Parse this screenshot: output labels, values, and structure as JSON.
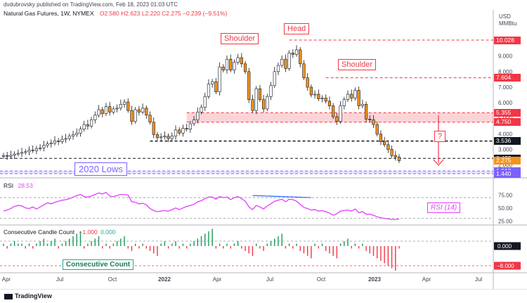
{
  "header": {
    "publisher": "dvdubrovsky published on TradingView.com, Feb 18, 2023 01:03 UTC",
    "symbol": "Natural Gas Futures, 1W, NYMEX",
    "ohlc": "O2.580  H2.623  L2.220  C2.275  −0.239 (−9.51%)",
    "currency": "USD",
    "unit": "MMBtu"
  },
  "annotations": {
    "shoulder_left": "Shoulder",
    "head": "Head",
    "shoulder_right": "Shoulder",
    "lows_2020": "2020 Lows",
    "question": "?",
    "rsi_label": "RSI (14)",
    "consecutive_label": "Consecutive Count"
  },
  "rsi": {
    "title": "RSI",
    "value": "28.53"
  },
  "ccc": {
    "title": "Consecutive Candle Count",
    "value1": "−1.000",
    "value2": "0.000"
  },
  "footer": {
    "logo": "TradingView"
  },
  "colors": {
    "up": "#26a69a",
    "candle_up": "#ffffff",
    "candle_down": "#f7931a",
    "resistance": "#f23645",
    "rsi": "#e040fb",
    "lows": "#7b61ff"
  },
  "chart_data": [
    {
      "type": "candlestick",
      "title": "Natural Gas Futures, 1W, NYMEX",
      "x_ticks": [
        "Apr",
        "Jul",
        "Oct",
        "2022",
        "Apr",
        "Jul",
        "Oct",
        "2023",
        "Apr",
        "Jul"
      ],
      "y_ticks": [
        "9.000",
        "8.000",
        "7.000",
        "6.000",
        "5.000",
        "4.000",
        "3.000",
        "2.000"
      ],
      "price_labels": [
        {
          "label": "10.028",
          "value": 10.028,
          "color": "#f23645"
        },
        {
          "label": "7.604",
          "value": 7.604,
          "color": "#f23645"
        },
        {
          "label": "5.355",
          "value": 5.355,
          "color": "#f23645"
        },
        {
          "label": "4.750",
          "value": 4.75,
          "color": "#f23645"
        },
        {
          "label": "3.536",
          "value": 3.536,
          "color": "#131722"
        },
        {
          "label": "2.422",
          "value": 2.422,
          "color": "#131722"
        },
        {
          "label": "2.275",
          "value": 2.275,
          "color": "#f7931a"
        },
        {
          "label": "1.612",
          "value": 1.612,
          "color": "#7b61ff"
        },
        {
          "label": "1.440",
          "value": 1.44,
          "color": "#7b61ff"
        }
      ],
      "close": [
        2.6,
        2.55,
        2.62,
        2.7,
        2.75,
        2.8,
        2.85,
        2.95,
        2.92,
        3.05,
        3.1,
        3.25,
        3.35,
        3.4,
        3.55,
        3.5,
        3.65,
        3.7,
        3.85,
        3.95,
        4.05,
        4.3,
        4.6,
        4.5,
        4.9,
        5.2,
        5.55,
        5.3,
        5.75,
        5.4,
        5.6,
        5.65,
        5.9,
        6.05,
        5.5,
        4.8,
        5.55,
        5.4,
        5.65,
        5.2,
        4.75,
        3.95,
        3.75,
        3.8,
        3.85,
        3.7,
        3.85,
        4.25,
        4.05,
        4.35,
        4.3,
        4.65,
        4.9,
        5.4,
        5.7,
        6.4,
        7.2,
        7.35,
        6.7,
        8.3,
        8.1,
        8.8,
        8.1,
        8.6,
        8.9,
        8.5,
        8.0,
        6.2,
        5.5,
        6.9,
        6.2,
        5.6,
        6.4,
        7.1,
        8.0,
        8.4,
        8.8,
        8.2,
        9.2,
        9.1,
        9.4,
        8.5,
        7.6,
        7.0,
        6.5,
        6.55,
        6.25,
        6.3,
        6.1,
        5.8,
        5.1,
        4.8,
        5.8,
        6.2,
        6.55,
        6.3,
        6.8,
        5.8,
        5.9,
        4.95,
        4.9,
        4.6,
        3.98,
        3.5,
        3.3,
        3.0,
        2.6,
        2.51,
        2.275
      ],
      "levels": {
        "resistance_zone": [
          4.75,
          5.355
        ],
        "support": 3.536,
        "lows_2020": [
          1.44,
          1.612
        ],
        "current": 2.275
      }
    },
    {
      "type": "line",
      "title": "RSI",
      "y_ticks": [
        "75.00",
        "50.00",
        "25.00"
      ],
      "levels": [
        70,
        30
      ],
      "values": [
        44,
        46,
        49,
        53,
        55,
        54,
        50,
        49,
        52,
        48,
        52,
        56,
        60,
        58,
        61,
        63,
        65,
        66,
        68,
        71,
        74,
        76,
        72,
        71,
        73,
        76,
        79,
        77,
        80,
        73,
        72,
        74,
        76,
        76,
        75,
        62,
        61,
        58,
        59,
        56,
        49,
        45,
        43,
        44,
        45,
        44,
        47,
        50,
        47,
        50,
        53,
        55,
        57,
        62,
        64,
        68,
        71,
        71,
        67,
        72,
        70,
        71,
        66,
        70,
        72,
        68,
        63,
        52,
        47,
        55,
        52,
        48,
        54,
        58,
        63,
        65,
        67,
        62,
        67,
        66,
        63,
        57,
        51,
        49,
        46,
        47,
        44,
        45,
        43,
        40,
        36,
        39,
        44,
        45,
        46,
        44,
        48,
        41,
        43,
        38,
        38,
        36,
        33,
        31,
        30,
        29,
        28,
        28,
        28.53
      ],
      "annotation": "RSI (14)"
    },
    {
      "type": "bar",
      "title": "Consecutive Candle Count",
      "y_ticks": [
        "0.000",
        "−8.000"
      ],
      "values": [
        1,
        -1,
        1,
        2,
        1,
        1,
        -1,
        1,
        -1,
        1,
        2,
        3,
        1,
        2,
        3,
        -1,
        1,
        2,
        3,
        4,
        5,
        6,
        -1,
        1,
        2,
        3,
        4,
        -1,
        1,
        -1,
        1,
        2,
        3,
        4,
        -1,
        -2,
        1,
        -1,
        1,
        -1,
        -2,
        -3,
        -4,
        1,
        2,
        -1,
        1,
        2,
        -1,
        1,
        -1,
        1,
        2,
        3,
        4,
        5,
        6,
        7,
        -1,
        1,
        -1,
        1,
        -1,
        1,
        2,
        -1,
        -2,
        -3,
        -4,
        1,
        -1,
        -2,
        1,
        2,
        3,
        4,
        5,
        -1,
        1,
        -1,
        1,
        -2,
        -3,
        -4,
        -5,
        1,
        -1,
        1,
        -2,
        -3,
        -4,
        -5,
        1,
        2,
        3,
        -1,
        1,
        -1,
        1,
        -2,
        -3,
        -4,
        -5,
        -6,
        -7,
        -8,
        -9,
        -10,
        -1
      ],
      "annotation": "Consecutive Count"
    }
  ]
}
